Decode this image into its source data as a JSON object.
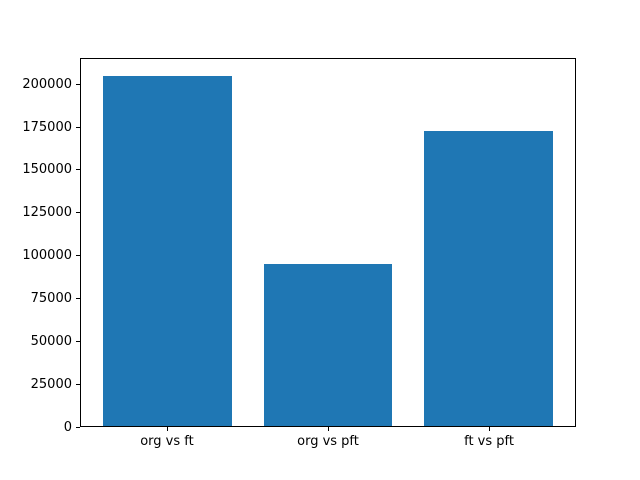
{
  "chart_data": {
    "type": "bar",
    "title": "",
    "xlabel": "",
    "ylabel": "",
    "categories": [
      "org vs ft",
      "org vs pft",
      "ft vs pft"
    ],
    "values": [
      205000,
      95000,
      173000
    ],
    "yticks": [
      0,
      25000,
      50000,
      75000,
      100000,
      125000,
      150000,
      175000,
      200000
    ],
    "ytick_labels": [
      "0",
      "25000",
      "50000",
      "75000",
      "100000",
      "125000",
      "150000",
      "175000",
      "200000"
    ],
    "ylim": [
      0,
      215250
    ],
    "bar_color": "#1f77b4",
    "axis_color": "#000000",
    "background_color": "#ffffff",
    "grid": false,
    "legend_position": "none",
    "bar_width_fraction": 0.8
  }
}
